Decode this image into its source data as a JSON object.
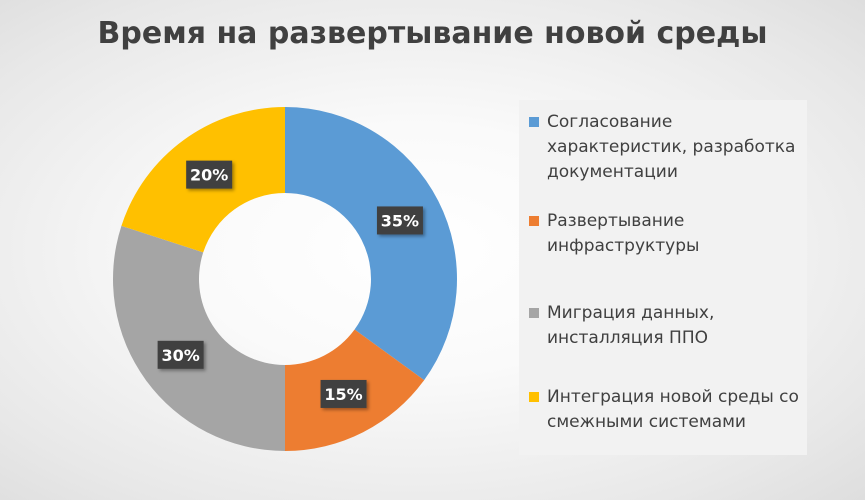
{
  "chart_data": {
    "type": "pie",
    "variant": "donut",
    "title": "Время на развертывание новой среды",
    "categories": [
      "Согласование характеристик, разработка документации",
      "Развертывание инфраструктуры",
      "Миграция данных, инсталляция ППО",
      "Интеграция новой среды со смежными системами"
    ],
    "values": [
      35,
      15,
      30,
      20
    ],
    "data_labels": [
      "35%",
      "15%",
      "30%",
      "20%"
    ],
    "colors": [
      "#5b9bd5",
      "#ed7d31",
      "#a5a5a5",
      "#ffc000"
    ],
    "legend_position": "right"
  }
}
